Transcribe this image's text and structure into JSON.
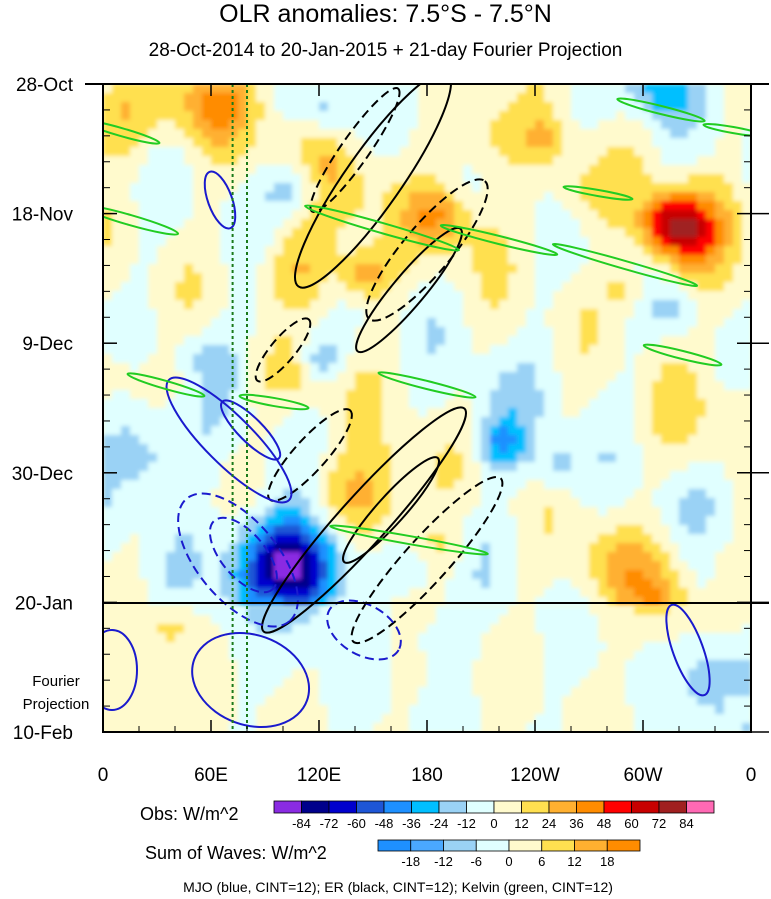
{
  "chart_data": {
    "type": "heatmap",
    "title": "OLR anomalies: 7.5°S - 7.5°N",
    "subtitle": "28-Oct-2014 to 20-Jan-2015 + 21-day Fourier Projection",
    "x_ticks": [
      "0",
      "60E",
      "120E",
      "180",
      "120W",
      "60W",
      "0"
    ],
    "x_tick_values": [
      0,
      60,
      120,
      180,
      240,
      300,
      360
    ],
    "y_ticks": [
      "28-Oct",
      "18-Nov",
      "9-Dec",
      "30-Dec",
      "20-Jan",
      "10-Feb"
    ],
    "y_tick_values": [
      "2014-10-28",
      "2014-11-18",
      "2014-12-09",
      "2014-12-30",
      "2015-01-20",
      "2015-02-10"
    ],
    "forecast_label": [
      "Fourier",
      "Projection"
    ],
    "obs_colorbar": {
      "label": "Obs: W/m^2",
      "levels": [
        -84,
        -72,
        -60,
        -48,
        -36,
        -24,
        -12,
        0,
        12,
        24,
        36,
        48,
        60,
        72,
        84
      ],
      "colors": [
        "#8a2be2",
        "#00008b",
        "#0000cd",
        "#1e56d6",
        "#1e90ff",
        "#00bfff",
        "#9ad2f5",
        "#e0ffff",
        "#fffacd",
        "#ffe050",
        "#ffb030",
        "#ff8c00",
        "#ff0000",
        "#c80000",
        "#a02020",
        "#ff69b4"
      ]
    },
    "waves_colorbar": {
      "label": "Sum of Waves: W/m^2",
      "levels": [
        -18,
        -12,
        -6,
        0,
        6,
        12,
        18
      ],
      "colors": [
        "#1e90ff",
        "#4aa8ff",
        "#9ad2f5",
        "#e0ffff",
        "#fffacd",
        "#ffe050",
        "#ffb030",
        "#ff8c00"
      ]
    },
    "footer": "MJO (blue, CINT=12); ER (black, CINT=12); Kelvin (green, CINT=12)",
    "series_colors": {
      "mjo": "#1a1acd",
      "er": "#000000",
      "kelvin": "#22cc22",
      "reference": "#1a7a1a"
    }
  }
}
